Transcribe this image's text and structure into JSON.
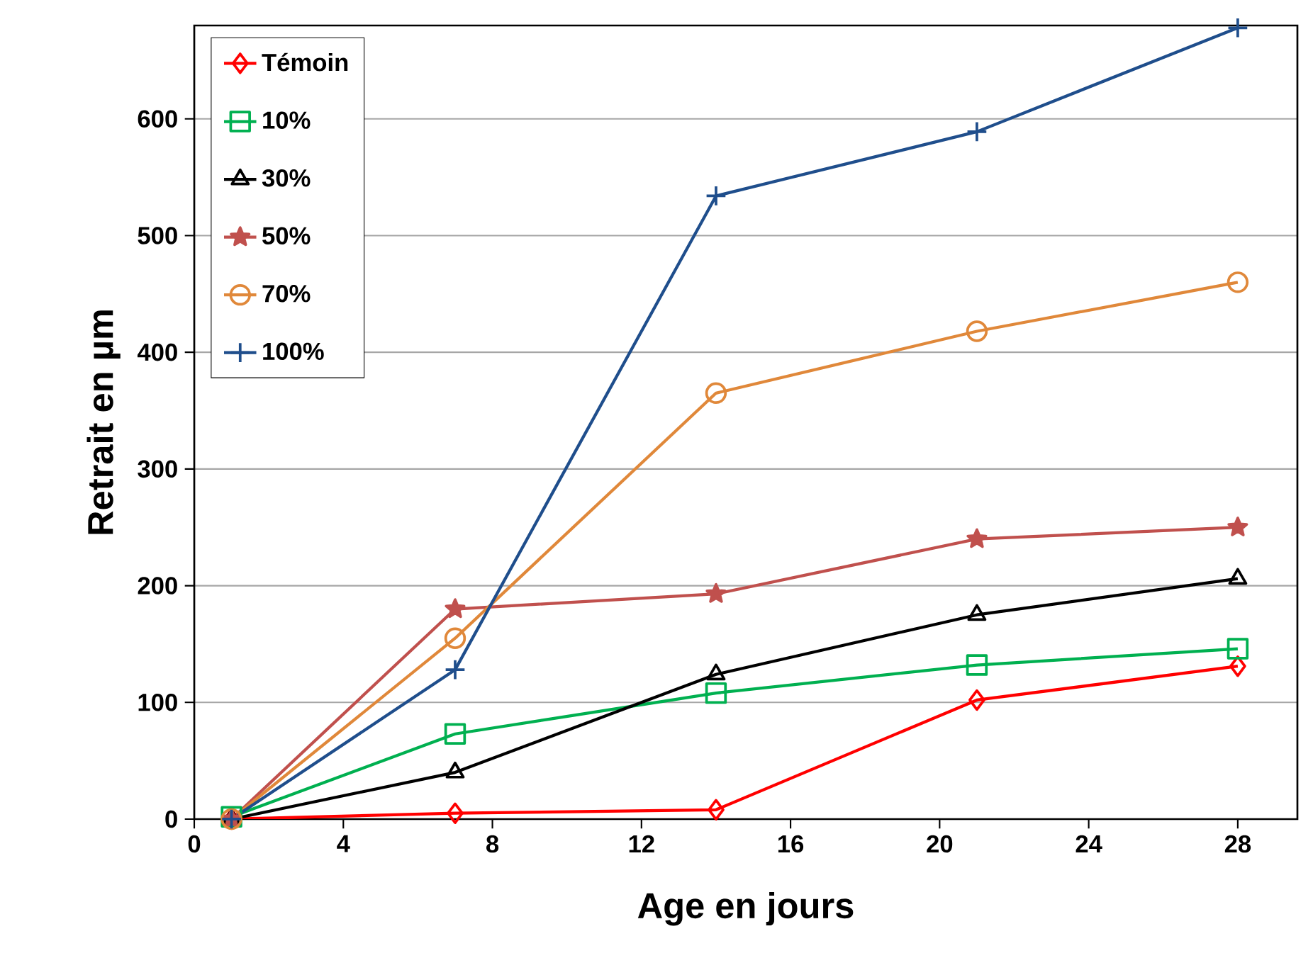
{
  "chart_data": {
    "type": "line",
    "xlabel": "Age en jours",
    "ylabel": "Retrait  en µm",
    "x": [
      1,
      7,
      14,
      21,
      28
    ],
    "series": [
      {
        "name": "Témoin",
        "color": "#ff0000",
        "marker": "diamond",
        "values": [
          0,
          5,
          8,
          102,
          131
        ]
      },
      {
        "name": "10%",
        "color": "#00b050",
        "marker": "square",
        "values": [
          2,
          73,
          108,
          132,
          146
        ]
      },
      {
        "name": "30%",
        "color": "#000000",
        "marker": "triangle",
        "values": [
          0,
          40,
          124,
          175,
          206
        ]
      },
      {
        "name": "50%",
        "color": "#c0504d",
        "marker": "star",
        "values": [
          0,
          180,
          193,
          240,
          250
        ]
      },
      {
        "name": "70%",
        "color": "#e0883a",
        "marker": "circle",
        "values": [
          0,
          155,
          365,
          418,
          460
        ]
      },
      {
        "name": "100%",
        "color": "#1f4e8c",
        "marker": "cross",
        "values": [
          0,
          128,
          534,
          589,
          678
        ]
      }
    ],
    "xlim": [
      0,
      29.6
    ],
    "ylim": [
      0,
      680
    ],
    "xticks": [
      0,
      4,
      8,
      12,
      16,
      20,
      24,
      28
    ],
    "yticks": [
      0,
      100,
      200,
      300,
      400,
      500,
      600
    ],
    "grid": "y",
    "legend": "top left",
    "line_style": "solid"
  }
}
